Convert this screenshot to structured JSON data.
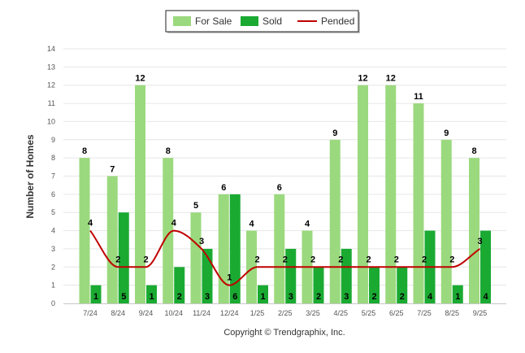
{
  "chart_data": {
    "type": "bar",
    "title": "",
    "xlabel": "",
    "ylabel": "Number of Homes",
    "ylim": [
      0,
      14
    ],
    "yticks": [
      0,
      1,
      2,
      3,
      4,
      5,
      6,
      7,
      8,
      9,
      10,
      11,
      12,
      13,
      14
    ],
    "grid": true,
    "legend_position": "top-center",
    "categories": [
      "7/24",
      "8/24",
      "9/24",
      "10/24",
      "11/24",
      "12/24",
      "1/25",
      "2/25",
      "3/25",
      "4/25",
      "5/25",
      "6/25",
      "7/25",
      "8/25",
      "9/25"
    ],
    "series": [
      {
        "name": "For Sale",
        "kind": "bar",
        "color": "#9bd97e",
        "values": [
          8,
          7,
          12,
          8,
          5,
          6,
          4,
          6,
          4,
          9,
          12,
          12,
          11,
          9,
          8
        ]
      },
      {
        "name": "Sold",
        "kind": "bar",
        "color": "#1aaa32",
        "values": [
          1,
          5,
          1,
          2,
          3,
          6,
          1,
          3,
          2,
          3,
          2,
          2,
          4,
          1,
          4
        ]
      },
      {
        "name": "Pended",
        "kind": "line",
        "color": "#c00000",
        "values": [
          4,
          2,
          2,
          4,
          3,
          1,
          2,
          2,
          2,
          2,
          2,
          2,
          2,
          2,
          3
        ]
      }
    ],
    "credit": "Copyright © Trendgraphix, Inc."
  }
}
